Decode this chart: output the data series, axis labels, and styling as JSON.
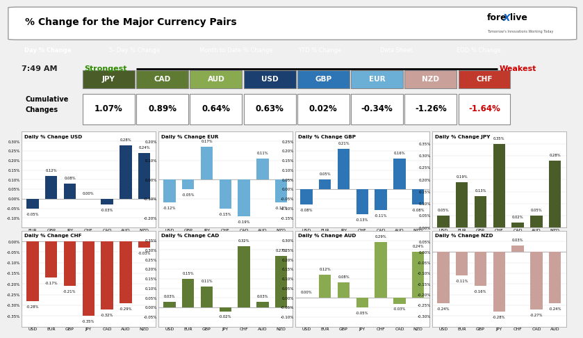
{
  "title": "% Change for the Major Currency Pairs",
  "time": "7:49 AM",
  "nav_items": [
    "Day % Change",
    "5- Day % Change",
    "Month to Date % Change",
    "YTD % Change",
    "Data Sheet",
    "EOD % Change"
  ],
  "currencies": [
    "JPY",
    "CAD",
    "AUD",
    "USD",
    "GBP",
    "EUR",
    "NZD",
    "CHF"
  ],
  "cum_values": [
    "1.07%",
    "0.89%",
    "0.64%",
    "0.63%",
    "0.02%",
    "-0.34%",
    "-1.26%",
    "-1.64%"
  ],
  "cum_colors": [
    "#4a5c28",
    "#5f7a32",
    "#8aaa50",
    "#1b3f6e",
    "#2e75b6",
    "#6baed6",
    "#c9a09a",
    "#c0392b"
  ],
  "charts": {
    "USD": {
      "title": "Daily % Change USD",
      "categories": [
        "EUR",
        "GBP",
        "JPY",
        "CHF",
        "CAD",
        "AUD",
        "NZD"
      ],
      "values": [
        -0.05,
        0.12,
        0.08,
        0.0,
        -0.03,
        0.28,
        0.24
      ],
      "color": "#1b3f6e",
      "ylim": [
        -0.15,
        0.35
      ],
      "yticks": [
        -0.1,
        -0.05,
        0.0,
        0.05,
        0.1,
        0.15,
        0.2,
        0.25,
        0.3
      ]
    },
    "EUR": {
      "title": "Daily % Change EUR",
      "categories": [
        "USD",
        "GBP",
        "JPY",
        "CHF",
        "CAD",
        "AUD",
        "NZD"
      ],
      "values": [
        -0.12,
        -0.05,
        0.17,
        -0.15,
        -0.19,
        0.11,
        -0.12
      ],
      "color": "#6baed6",
      "ylim": [
        -0.25,
        0.25
      ],
      "yticks": [
        -0.2,
        -0.1,
        0.0,
        0.1,
        0.2
      ]
    },
    "GBP": {
      "title": "Daily % Change GBP",
      "categories": [
        "USD",
        "EUR",
        "JPY",
        "CHF",
        "CAD",
        "AUD",
        "NZD"
      ],
      "values": [
        -0.08,
        0.05,
        0.21,
        -0.13,
        -0.11,
        0.16,
        -0.08
      ],
      "color": "#2e75b6",
      "ylim": [
        -0.2,
        0.3
      ],
      "yticks": [
        -0.15,
        -0.1,
        -0.05,
        0.0,
        0.05,
        0.1,
        0.15,
        0.2,
        0.25
      ]
    },
    "JPY": {
      "title": "Daily % Change JPY",
      "categories": [
        "USD",
        "EUR",
        "GBP",
        "CHF",
        "CAD",
        "AUD",
        "NZD"
      ],
      "values": [
        0.05,
        0.19,
        0.13,
        0.35,
        0.02,
        0.05,
        0.28
      ],
      "color": "#4a5c28",
      "ylim": [
        0.0,
        0.4
      ],
      "yticks": [
        0.0,
        0.05,
        0.1,
        0.15,
        0.2,
        0.25,
        0.3,
        0.35
      ]
    },
    "CHF": {
      "title": "Daily % Change CHF",
      "categories": [
        "USD",
        "EUR",
        "GBP",
        "JPY",
        "CAD",
        "AUD",
        "NZD"
      ],
      "values": [
        -0.28,
        -0.17,
        -0.21,
        -0.35,
        -0.32,
        -0.29,
        -0.03
      ],
      "color": "#c0392b",
      "ylim": [
        -0.4,
        0.05
      ],
      "yticks": [
        -0.35,
        -0.3,
        -0.25,
        -0.2,
        -0.15,
        -0.1,
        -0.05,
        0.0
      ]
    },
    "CAD": {
      "title": "Daily % Change CAD",
      "categories": [
        "USD",
        "EUR",
        "GBP",
        "JPY",
        "CHF",
        "AUD",
        "NZD"
      ],
      "values": [
        0.03,
        0.15,
        0.11,
        -0.02,
        0.32,
        0.03,
        0.27
      ],
      "color": "#5f7a32",
      "ylim": [
        -0.1,
        0.4
      ],
      "yticks": [
        -0.05,
        0.0,
        0.05,
        0.1,
        0.15,
        0.2,
        0.25,
        0.3,
        0.35
      ]
    },
    "AUD": {
      "title": "Daily % Change AUD",
      "categories": [
        "USD",
        "EUR",
        "GBP",
        "JPY",
        "CHF",
        "CAD",
        "NZD"
      ],
      "values": [
        0.0,
        0.12,
        0.08,
        -0.05,
        0.29,
        -0.03,
        0.24
      ],
      "color": "#8aaa50",
      "ylim": [
        -0.15,
        0.35
      ],
      "yticks": [
        -0.1,
        -0.05,
        0.0,
        0.05,
        0.1,
        0.15,
        0.2,
        0.25,
        0.3
      ]
    },
    "NZD": {
      "title": "Daily % Change NZD",
      "categories": [
        "USD",
        "EUR",
        "GBP",
        "JPY",
        "CHF",
        "CAD",
        "AUD"
      ],
      "values": [
        -0.24,
        -0.11,
        -0.16,
        -0.28,
        0.03,
        -0.27,
        -0.24
      ],
      "color": "#c9a09a",
      "ylim": [
        -0.35,
        0.1
      ],
      "yticks": [
        -0.3,
        -0.25,
        -0.2,
        -0.15,
        -0.1,
        -0.05,
        0.0,
        0.05
      ]
    }
  },
  "chart_order": [
    "USD",
    "EUR",
    "GBP",
    "JPY",
    "CHF",
    "CAD",
    "AUD",
    "NZD"
  ],
  "bg_color": "#ffffff",
  "header_bg": "#111111",
  "strongest_color": "#2e8b00",
  "weakest_color": "#cc0000"
}
